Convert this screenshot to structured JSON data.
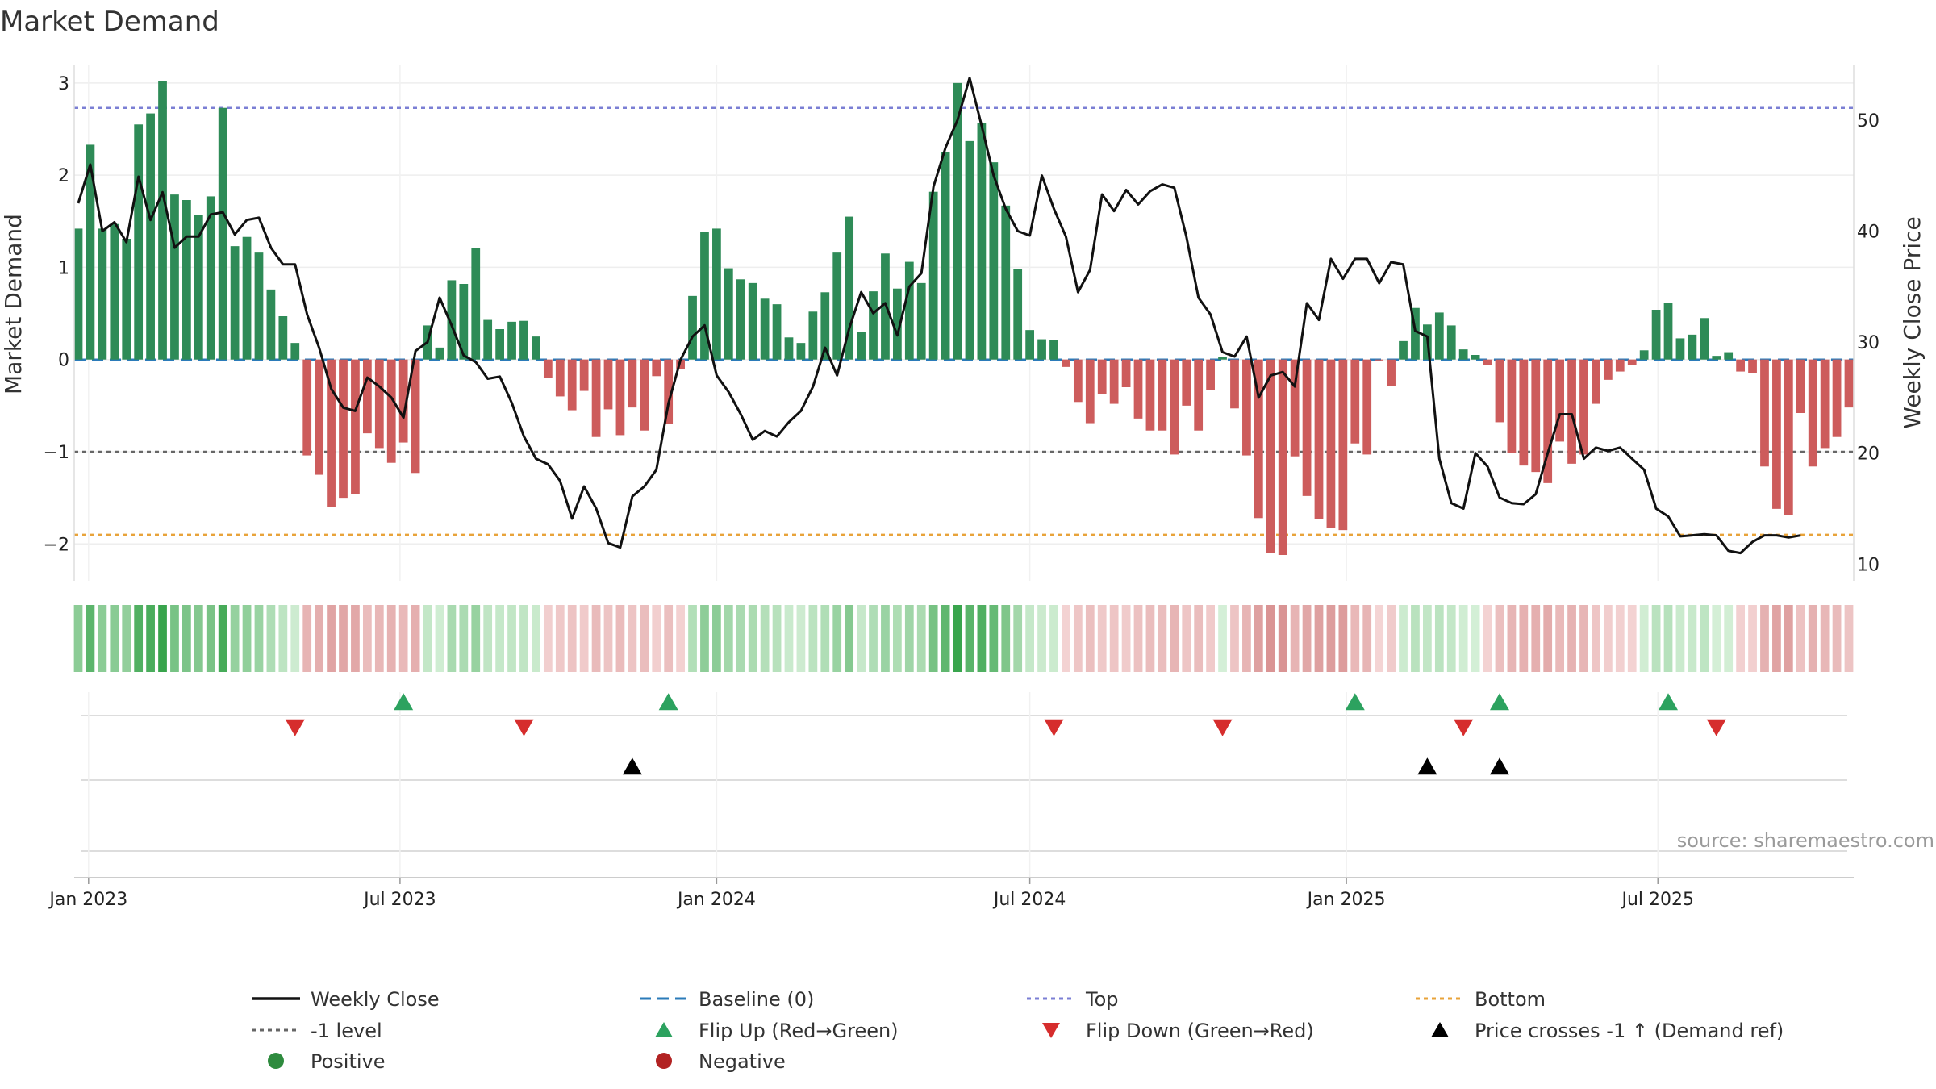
{
  "chart_data": {
    "type": "bar",
    "title": "Market Demand",
    "ylabel": "Market Demand",
    "y2label": "Weekly Close Price",
    "ylim": [
      -2.4,
      3.2
    ],
    "y2lim": [
      8.5,
      55
    ],
    "yticks": [
      -2,
      -1,
      0,
      1,
      2,
      3
    ],
    "y2ticks": [
      10,
      20,
      30,
      40,
      50
    ],
    "levels": {
      "top": 2.73,
      "bottom": -1.9,
      "minus_one": -1
    },
    "start_date": "2022-12-26",
    "x_ticks": [
      {
        "label": "Jan 2023",
        "date": "2023-01-01"
      },
      {
        "label": "Jul 2023",
        "date": "2023-07-01"
      },
      {
        "label": "Jan 2024",
        "date": "2024-01-01"
      },
      {
        "label": "Jul 2024",
        "date": "2024-07-01"
      },
      {
        "label": "Jan 2025",
        "date": "2025-01-01"
      },
      {
        "label": "Jul 2025",
        "date": "2025-07-01"
      }
    ],
    "demand": [
      1.42,
      2.33,
      1.42,
      1.47,
      1.31,
      2.55,
      2.67,
      3.02,
      1.79,
      1.73,
      1.57,
      1.77,
      2.73,
      1.23,
      1.33,
      1.16,
      0.76,
      0.47,
      0.18,
      -1.04,
      -1.25,
      -1.6,
      -1.5,
      -1.46,
      -0.8,
      -0.96,
      -1.12,
      -0.9,
      -1.23,
      0.37,
      0.13,
      0.86,
      0.82,
      1.21,
      0.43,
      0.33,
      0.41,
      0.42,
      0.25,
      -0.2,
      -0.4,
      -0.55,
      -0.34,
      -0.84,
      -0.54,
      -0.82,
      -0.52,
      -0.77,
      -0.18,
      -0.7,
      -0.1,
      0.69,
      1.38,
      1.42,
      0.99,
      0.87,
      0.83,
      0.66,
      0.6,
      0.24,
      0.18,
      0.52,
      0.73,
      1.16,
      1.55,
      0.3,
      0.74,
      1.15,
      0.77,
      1.06,
      0.83,
      1.82,
      2.25,
      3.0,
      2.37,
      2.57,
      2.14,
      1.67,
      0.98,
      0.32,
      0.22,
      0.21,
      -0.08,
      -0.46,
      -0.69,
      -0.37,
      -0.48,
      -0.3,
      -0.64,
      -0.77,
      -0.77,
      -1.03,
      -0.5,
      -0.77,
      -0.33,
      0.03,
      -0.53,
      -1.04,
      -1.72,
      -2.1,
      -2.12,
      -1.05,
      -1.48,
      -1.73,
      -1.83,
      -1.85,
      -0.91,
      -1.03,
      -0.01,
      -0.29,
      0.2,
      0.56,
      0.38,
      0.51,
      0.37,
      0.11,
      0.05,
      -0.06,
      -0.68,
      -1.01,
      -1.15,
      -1.22,
      -1.34,
      -0.89,
      -1.13,
      -1.03,
      -0.48,
      -0.22,
      -0.13,
      -0.06,
      0.1,
      0.54,
      0.61,
      0.23,
      0.27,
      0.45,
      0.04,
      0.08,
      -0.13,
      -0.15,
      -1.16,
      -1.62,
      -1.69,
      -0.58,
      -1.16,
      -0.96,
      -0.84,
      -0.52
    ],
    "close": [
      42.5,
      46.0,
      40.0,
      40.8,
      39.0,
      44.9,
      41.0,
      43.5,
      38.5,
      39.5,
      39.5,
      41.5,
      41.7,
      39.7,
      41.0,
      41.2,
      38.5,
      37.0,
      37.0,
      32.5,
      29.5,
      25.8,
      24.1,
      23.8,
      26.8,
      26.0,
      25.0,
      23.2,
      29.2,
      30.0,
      34.0,
      31.5,
      28.8,
      28.2,
      26.7,
      26.9,
      24.5,
      21.5,
      19.5,
      19.0,
      17.5,
      14.1,
      17.0,
      15.0,
      11.9,
      11.5,
      16.1,
      17.0,
      18.5,
      24.5,
      28.4,
      30.5,
      31.5,
      27.0,
      25.5,
      23.5,
      21.2,
      22.0,
      21.5,
      22.8,
      23.8,
      26.0,
      29.5,
      27.0,
      31.2,
      34.5,
      32.6,
      33.5,
      30.6,
      35.0,
      36.2,
      44.0,
      47.5,
      50.0,
      53.8,
      49.5,
      45.0,
      42.0,
      40.0,
      39.6,
      45.0,
      42.0,
      39.5,
      34.5,
      36.5,
      43.3,
      41.8,
      43.7,
      42.4,
      43.6,
      44.2,
      43.9,
      39.5,
      34.0,
      32.5,
      29.1,
      28.7,
      30.5,
      25.0,
      27.0,
      27.3,
      26.0,
      33.5,
      32.0,
      37.5,
      35.7,
      37.5,
      37.5,
      35.3,
      37.2,
      37.0,
      31.0,
      30.5,
      19.5,
      15.5,
      15.0,
      20.0,
      18.8,
      16.0,
      15.5,
      15.4,
      16.3,
      20.0,
      23.5,
      23.5,
      19.5,
      20.5,
      20.2,
      20.5,
      19.5,
      18.5,
      15.0,
      14.3,
      12.5,
      12.6,
      12.7,
      12.6,
      11.2,
      11.0,
      12.0,
      12.6,
      12.6,
      12.4,
      12.6
    ],
    "flip_up_weeks": [
      27,
      49,
      106,
      118,
      132
    ],
    "flip_down_weeks": [
      18,
      37,
      81,
      95,
      115,
      136
    ],
    "price_cross_weeks": [
      46,
      112,
      118
    ],
    "series": [
      {
        "name": "Weekly Close",
        "color": "#111111"
      },
      {
        "name": "Baseline (0)",
        "color": "#2b7bb9"
      },
      {
        "name": "Top",
        "color": "#7b7fd4"
      },
      {
        "name": "Bottom",
        "color": "#e8a33a"
      },
      {
        "name": "-1 level",
        "color": "#666666"
      },
      {
        "name": "Flip Up (Red→Green)",
        "color": "#2ca25f"
      },
      {
        "name": "Flip Down (Green→Red)",
        "color": "#d62d2d"
      },
      {
        "name": "Price crosses -1 ↑ (Demand ref)",
        "color": "#000000"
      },
      {
        "name": "Positive",
        "color": "#2e8b3e"
      },
      {
        "name": "Negative",
        "color": "#b22222"
      }
    ],
    "bar_colors": {
      "positive": "#2e8b57",
      "negative": "#cd5c5c"
    },
    "source": "source: sharemaestro.com"
  }
}
